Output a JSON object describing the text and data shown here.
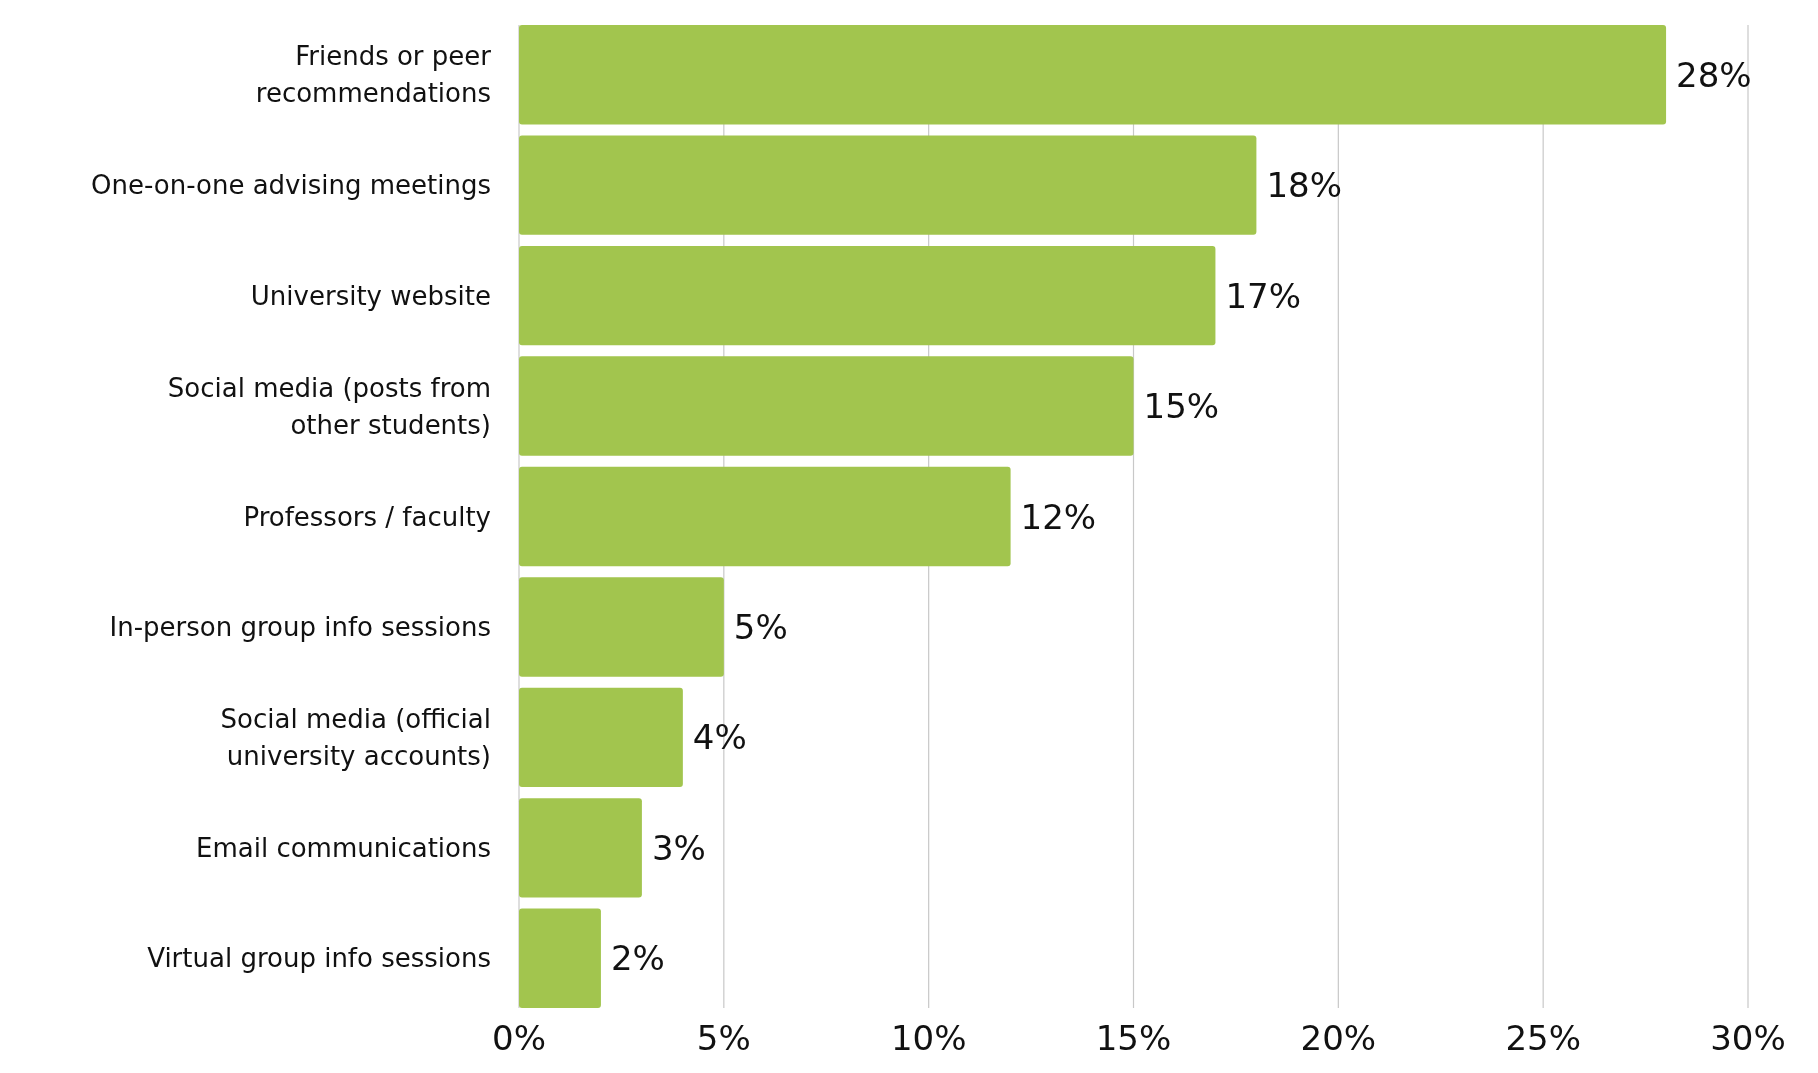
{
  "chart_data": {
    "type": "bar",
    "orientation": "horizontal",
    "categories": [
      "Friends or peer recommendations",
      "One-on-one advising meetings",
      "University website",
      "Social media (posts from other students)",
      "Professors / faculty",
      "In-person group info sessions",
      "Social media (official university accounts)",
      "Email communications",
      "Virtual group info sessions"
    ],
    "values": [
      28,
      18,
      17,
      15,
      12,
      5,
      4,
      3,
      2
    ],
    "value_labels": [
      "28%",
      "18%",
      "17%",
      "15%",
      "12%",
      "5%",
      "4%",
      "3%",
      "2%"
    ],
    "color": "#a2c54e",
    "xlim": [
      0,
      30
    ],
    "xticks": [
      {
        "value": 0,
        "label": "0%"
      },
      {
        "value": 5,
        "label": "5%"
      },
      {
        "value": 10,
        "label": "10%"
      },
      {
        "value": 15,
        "label": "15%"
      },
      {
        "value": 20,
        "label": "20%"
      },
      {
        "value": 25,
        "label": "25%"
      },
      {
        "value": 30,
        "label": "30%"
      }
    ],
    "grid": "x"
  }
}
